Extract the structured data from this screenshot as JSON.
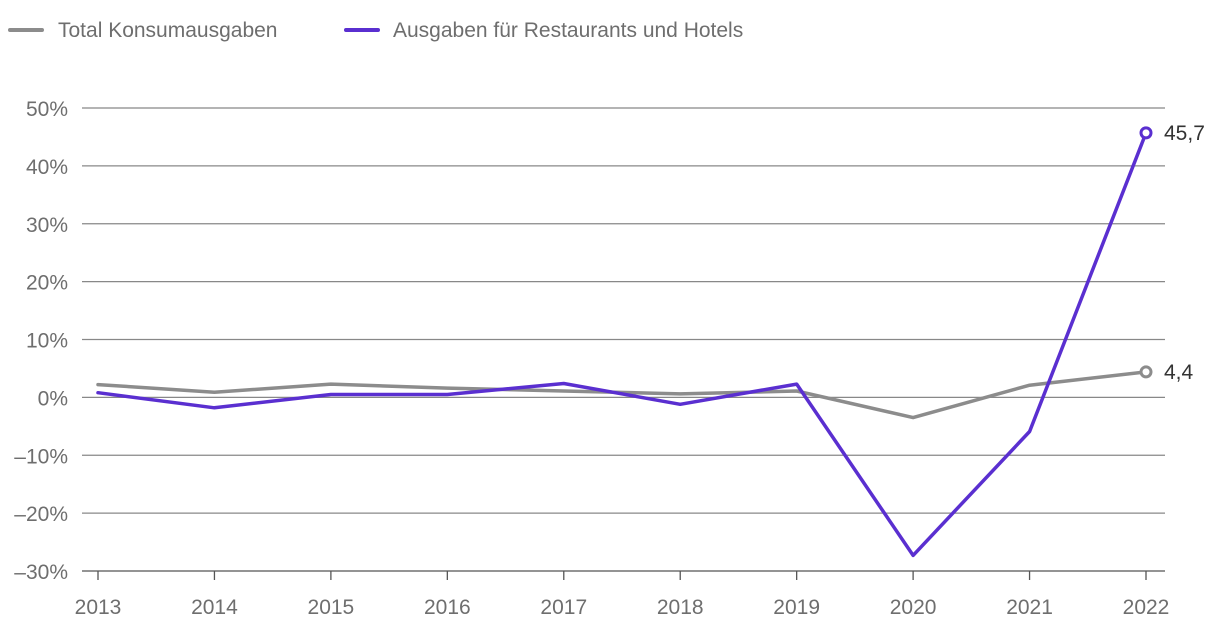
{
  "chart_data": {
    "type": "line",
    "categories": [
      "2013",
      "2014",
      "2015",
      "2016",
      "2017",
      "2018",
      "2019",
      "2020",
      "2021",
      "2022"
    ],
    "series": [
      {
        "name": "Total Konsumausgaben",
        "color": "#8c8c8c",
        "values": [
          2.2,
          0.9,
          2.3,
          1.6,
          1.1,
          0.6,
          1.1,
          -3.5,
          2.1,
          4.4
        ],
        "end_label": "4,4"
      },
      {
        "name": "Ausgaben für Restaurants und Hotels",
        "color": "#5a2fd0",
        "values": [
          0.8,
          -1.8,
          0.5,
          0.5,
          2.4,
          -1.2,
          2.3,
          -27.3,
          -5.9,
          45.7
        ],
        "end_label": "45,7"
      }
    ],
    "y_ticks": [
      50,
      40,
      30,
      20,
      10,
      0,
      -10,
      -20,
      -30
    ],
    "y_tick_labels": [
      "50%",
      "40%",
      "30%",
      "20%",
      "10%",
      "0%",
      "–10%",
      "–20%",
      "–30%"
    ],
    "ylim": [
      -30,
      50
    ],
    "grid": true,
    "legend_position": "top-left"
  }
}
